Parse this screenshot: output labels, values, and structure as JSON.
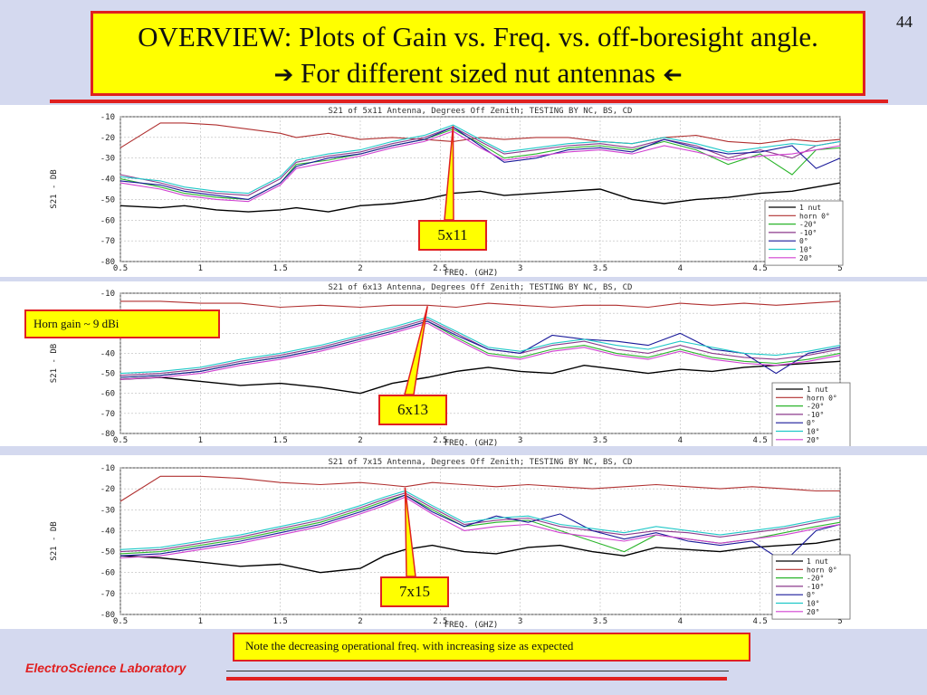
{
  "slide": {
    "number": "44",
    "title_line1": "OVERVIEW: Plots of Gain vs. Freq. vs. off-boresight angle.",
    "title_line2": "For different sized nut antennas",
    "arrow_right": "➔",
    "arrow_left": "➔",
    "horn_note": "Horn gain ~ 9 dBi",
    "bottom_note": "Note the decreasing operational freq. with increasing size as expected",
    "footer": "ElectroScience Laboratory"
  },
  "colors": {
    "accent_red": "#e02020",
    "callout_yellow": "#ffff00",
    "slide_bg": "#d4d9ef"
  },
  "chart_data": [
    {
      "type": "line",
      "title": "S21 of 5x11 Antenna, Degrees Off Zenith; TESTING BY NC, BS, CD",
      "xlabel": "FREQ. (GHZ)",
      "ylabel": "S21 - DB",
      "xlim": [
        0.5,
        5
      ],
      "ylim": [
        -80,
        -10
      ],
      "xticks": [
        "0.5",
        "1",
        "1.5",
        "2",
        "2.5",
        "3",
        "3.5",
        "4",
        "4.5",
        "5"
      ],
      "yticks": [
        "-10",
        "-20",
        "-30",
        "-40",
        "-50",
        "-60",
        "-70",
        "-80"
      ],
      "grid": true,
      "legend_position": "bottom-right",
      "callout": "5x11",
      "callout_freq": 2.58,
      "x": [
        0.5,
        0.75,
        0.9,
        1.1,
        1.3,
        1.5,
        1.6,
        1.8,
        2.0,
        2.2,
        2.4,
        2.58,
        2.75,
        2.9,
        3.1,
        3.3,
        3.5,
        3.7,
        3.9,
        4.1,
        4.3,
        4.5,
        4.7,
        4.85,
        5.0
      ],
      "series": [
        {
          "name": "1 nut",
          "color": "#000000",
          "values": [
            -53,
            -54,
            -53,
            -55,
            -56,
            -55,
            -54,
            -56,
            -53,
            -52,
            -50,
            -47,
            -46,
            -48,
            -47,
            -46,
            -45,
            -50,
            -52,
            -50,
            -49,
            -47,
            -46,
            -44,
            -42
          ]
        },
        {
          "name": "horn 0°",
          "color": "#b03030",
          "values": [
            -25,
            -13,
            -13,
            -14,
            -16,
            -18,
            -20,
            -18,
            -21,
            -20,
            -21,
            -22,
            -20,
            -21,
            -20,
            -20,
            -22,
            -23,
            -20,
            -19,
            -22,
            -23,
            -21,
            -22,
            -21
          ]
        },
        {
          "name": "-20°",
          "color": "#2bb52b",
          "values": [
            -40,
            -44,
            -47,
            -49,
            -50,
            -42,
            -33,
            -31,
            -28,
            -24,
            -21,
            -16,
            -23,
            -30,
            -28,
            -25,
            -24,
            -26,
            -22,
            -26,
            -33,
            -28,
            -38,
            -26,
            -25
          ]
        },
        {
          "name": "-10°",
          "color": "#8c3a8c",
          "values": [
            -38,
            -42,
            -45,
            -47,
            -48,
            -40,
            -32,
            -29,
            -27,
            -23,
            -20,
            -15,
            -22,
            -28,
            -26,
            -24,
            -23,
            -25,
            -21,
            -24,
            -30,
            -26,
            -30,
            -24,
            -22
          ]
        },
        {
          "name": "0°",
          "color": "#1a1a9a",
          "values": [
            -41,
            -43,
            -46,
            -48,
            -50,
            -42,
            -34,
            -30,
            -28,
            -24,
            -21,
            -15,
            -24,
            -32,
            -30,
            -26,
            -25,
            -27,
            -21,
            -25,
            -28,
            -27,
            -24,
            -35,
            -30
          ]
        },
        {
          "name": "10°",
          "color": "#20c8c8",
          "values": [
            -39,
            -41,
            -44,
            -46,
            -47,
            -39,
            -31,
            -28,
            -26,
            -22,
            -19,
            -14,
            -21,
            -27,
            -25,
            -23,
            -22,
            -23,
            -20,
            -23,
            -27,
            -25,
            -23,
            -24,
            -22
          ]
        },
        {
          "name": "20°",
          "color": "#d040d0",
          "values": [
            -42,
            -45,
            -48,
            -50,
            -51,
            -43,
            -35,
            -32,
            -29,
            -25,
            -22,
            -17,
            -25,
            -31,
            -29,
            -27,
            -26,
            -28,
            -24,
            -27,
            -31,
            -29,
            -28,
            -26,
            -24
          ]
        }
      ]
    },
    {
      "type": "line",
      "title": "S21 of 6x13 Antenna, Degrees Off Zenith; TESTING BY NC, BS, CD",
      "xlabel": "FREQ. (GHZ)",
      "ylabel": "S21 - DB",
      "xlim": [
        0.5,
        5
      ],
      "ylim": [
        -80,
        -10
      ],
      "xticks": [
        "0.5",
        "1",
        "1.5",
        "2",
        "2.5",
        "3",
        "3.5",
        "4",
        "4.5",
        "5"
      ],
      "yticks": [
        "-10",
        "-20",
        "-30",
        "-40",
        "-50",
        "-60",
        "-70",
        "-80"
      ],
      "grid": true,
      "legend_position": "bottom-right",
      "callout": "6x13",
      "callout_freq": 2.42,
      "x": [
        0.5,
        0.75,
        1.0,
        1.25,
        1.5,
        1.75,
        2.0,
        2.2,
        2.42,
        2.6,
        2.8,
        3.0,
        3.2,
        3.4,
        3.6,
        3.8,
        4.0,
        4.2,
        4.4,
        4.6,
        4.8,
        5.0
      ],
      "series": [
        {
          "name": "1 nut",
          "color": "#000000",
          "values": [
            -53,
            -52,
            -54,
            -56,
            -55,
            -57,
            -60,
            -55,
            -52,
            -49,
            -47,
            -49,
            -50,
            -46,
            -48,
            -50,
            -48,
            -49,
            -47,
            -46,
            -45,
            -44
          ]
        },
        {
          "name": "horn 0°",
          "color": "#b03030",
          "values": [
            -14,
            -14,
            -15,
            -15,
            -17,
            -16,
            -17,
            -16,
            -16,
            -17,
            -15,
            -16,
            -17,
            -16,
            -16,
            -17,
            -15,
            -16,
            -15,
            -16,
            -15,
            -14
          ]
        },
        {
          "name": "-20°",
          "color": "#2bb52b",
          "values": [
            -52,
            -51,
            -49,
            -45,
            -42,
            -38,
            -33,
            -29,
            -24,
            -32,
            -40,
            -42,
            -38,
            -36,
            -40,
            -42,
            -38,
            -42,
            -44,
            -45,
            -43,
            -40
          ]
        },
        {
          "name": "-10°",
          "color": "#8c3a8c",
          "values": [
            -51,
            -50,
            -48,
            -44,
            -41,
            -37,
            -32,
            -28,
            -23,
            -30,
            -38,
            -40,
            -36,
            -34,
            -38,
            -40,
            -36,
            -40,
            -42,
            -43,
            -41,
            -38
          ]
        },
        {
          "name": "0°",
          "color": "#1a1a9a",
          "values": [
            -52,
            -51,
            -49,
            -45,
            -42,
            -38,
            -33,
            -29,
            -24,
            -31,
            -38,
            -40,
            -31,
            -33,
            -34,
            -36,
            -30,
            -38,
            -40,
            -50,
            -40,
            -37
          ]
        },
        {
          "name": "10°",
          "color": "#20c8c8",
          "values": [
            -50,
            -49,
            -47,
            -43,
            -40,
            -36,
            -31,
            -27,
            -22,
            -29,
            -37,
            -39,
            -35,
            -33,
            -36,
            -38,
            -34,
            -37,
            -40,
            -41,
            -39,
            -36
          ]
        },
        {
          "name": "20°",
          "color": "#d040d0",
          "values": [
            -53,
            -52,
            -50,
            -46,
            -43,
            -39,
            -34,
            -30,
            -25,
            -33,
            -41,
            -43,
            -39,
            -37,
            -41,
            -43,
            -39,
            -43,
            -45,
            -46,
            -44,
            -41
          ]
        }
      ]
    },
    {
      "type": "line",
      "title": "S21 of 7x15 Antenna, Degrees Off Zenith; TESTING BY NC, BS, CD",
      "xlabel": "FREQ. (GHZ)",
      "ylabel": "S21 - DB",
      "xlim": [
        0.5,
        5
      ],
      "ylim": [
        -80,
        -10
      ],
      "xticks": [
        "0.5",
        "1",
        "1.5",
        "2",
        "2.5",
        "3",
        "3.5",
        "4",
        "4.5",
        "5"
      ],
      "yticks": [
        "-10",
        "-20",
        "-30",
        "-40",
        "-50",
        "-60",
        "-70",
        "-80"
      ],
      "grid": true,
      "legend_position": "bottom-right",
      "callout": "7x15",
      "callout_freq": 2.28,
      "x": [
        0.5,
        0.75,
        1.0,
        1.25,
        1.5,
        1.75,
        2.0,
        2.15,
        2.28,
        2.45,
        2.65,
        2.85,
        3.05,
        3.25,
        3.45,
        3.65,
        3.85,
        4.05,
        4.25,
        4.45,
        4.65,
        4.85,
        5.0
      ],
      "series": [
        {
          "name": "1 nut",
          "color": "#000000",
          "values": [
            -52,
            -53,
            -55,
            -57,
            -56,
            -60,
            -58,
            -52,
            -49,
            -47,
            -50,
            -51,
            -48,
            -47,
            -50,
            -52,
            -48,
            -49,
            -50,
            -48,
            -47,
            -46,
            -44
          ]
        },
        {
          "name": "horn 0°",
          "color": "#b03030",
          "values": [
            -26,
            -14,
            -14,
            -15,
            -17,
            -18,
            -17,
            -18,
            -19,
            -17,
            -18,
            -19,
            -18,
            -19,
            -20,
            -19,
            -18,
            -19,
            -20,
            -19,
            -20,
            -21,
            -21
          ]
        },
        {
          "name": "-20°",
          "color": "#2bb52b",
          "values": [
            -51,
            -50,
            -47,
            -44,
            -40,
            -36,
            -30,
            -26,
            -23,
            -30,
            -38,
            -36,
            -35,
            -40,
            -45,
            -50,
            -42,
            -44,
            -46,
            -44,
            -41,
            -38,
            -36
          ]
        },
        {
          "name": "-10°",
          "color": "#8c3a8c",
          "values": [
            -50,
            -49,
            -46,
            -43,
            -39,
            -35,
            -29,
            -25,
            -22,
            -29,
            -37,
            -35,
            -34,
            -38,
            -40,
            -42,
            -40,
            -41,
            -43,
            -41,
            -39,
            -36,
            -34
          ]
        },
        {
          "name": "0°",
          "color": "#1a1a9a",
          "values": [
            -52,
            -51,
            -48,
            -45,
            -41,
            -37,
            -31,
            -27,
            -23,
            -31,
            -38,
            -33,
            -36,
            -32,
            -40,
            -44,
            -41,
            -45,
            -47,
            -45,
            -55,
            -40,
            -37
          ]
        },
        {
          "name": "10°",
          "color": "#20c8c8",
          "values": [
            -49,
            -48,
            -45,
            -42,
            -38,
            -34,
            -28,
            -24,
            -21,
            -28,
            -36,
            -34,
            -33,
            -37,
            -39,
            -41,
            -38,
            -40,
            -42,
            -40,
            -38,
            -35,
            -33
          ]
        },
        {
          "name": "20°",
          "color": "#d040d0",
          "values": [
            -53,
            -52,
            -49,
            -46,
            -42,
            -38,
            -32,
            -28,
            -24,
            -32,
            -40,
            -38,
            -37,
            -41,
            -43,
            -45,
            -42,
            -44,
            -46,
            -44,
            -42,
            -39,
            -37
          ]
        }
      ]
    }
  ]
}
